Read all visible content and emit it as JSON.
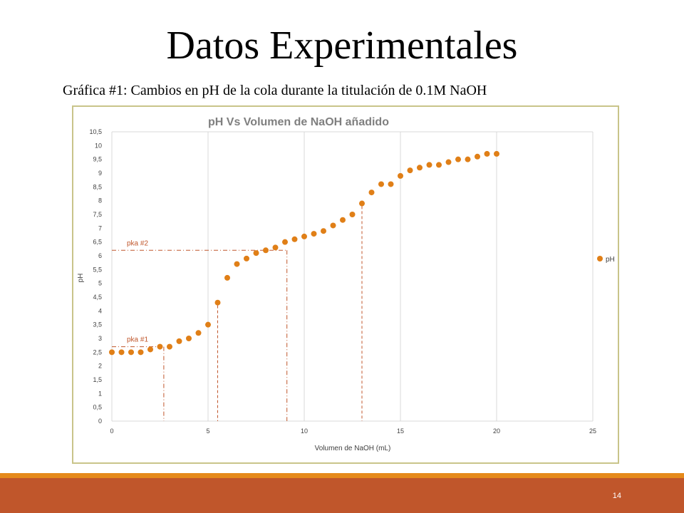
{
  "slide": {
    "title": "Datos Experimentales",
    "subtitle": "Gráfica #1: Cambios en pH de la cola durante la titulación de 0.1M NaOH",
    "page_number": "14"
  },
  "colors": {
    "marker": "#e07f17",
    "annotation": "#c0562b",
    "frame": "#c9c48a",
    "footer": "#c0562b",
    "footer_accent": "#e58a1b",
    "grid": "#d9d9d9",
    "title_text": "#7f7f7f"
  },
  "chart_data": {
    "type": "scatter",
    "title": "pH Vs Volumen de NaOH añadido",
    "xlabel": "Volumen de NaOH (mL)",
    "ylabel": "pH",
    "xlim": [
      0,
      25
    ],
    "ylim": [
      0,
      10.5
    ],
    "x_ticks": [
      "0",
      "5",
      "10",
      "15",
      "20",
      "25"
    ],
    "y_ticks": [
      "0",
      "0,5",
      "1",
      "1,5",
      "2",
      "2,5",
      "3",
      "3,5",
      "4",
      "4,5",
      "5",
      "5,5",
      "6",
      "6,5",
      "7",
      "7,5",
      "8",
      "8,5",
      "9",
      "9,5",
      "10",
      "10,5"
    ],
    "grid": "vertical",
    "legend": "right",
    "series": [
      {
        "name": "pH",
        "x": [
          0,
          0.5,
          1,
          1.5,
          2,
          2.5,
          3,
          3.5,
          4,
          4.5,
          5,
          5.5,
          6,
          6.5,
          7,
          7.5,
          8,
          8.5,
          9,
          9.5,
          10,
          10.5,
          11,
          11.5,
          12,
          12.5,
          13,
          13.5,
          14,
          14.5,
          15,
          15.5,
          16,
          16.5,
          17,
          17.5,
          18,
          18.5,
          19,
          19.5,
          20
        ],
        "y": [
          2.5,
          2.5,
          2.5,
          2.5,
          2.6,
          2.7,
          2.7,
          2.9,
          3.0,
          3.2,
          3.5,
          4.3,
          5.2,
          5.7,
          5.9,
          6.1,
          6.2,
          6.3,
          6.5,
          6.6,
          6.7,
          6.8,
          6.9,
          7.1,
          7.3,
          7.5,
          7.9,
          8.3,
          8.6,
          8.6,
          8.9,
          9.1,
          9.2,
          9.3,
          9.3,
          9.4,
          9.5,
          9.5,
          9.6,
          9.7,
          9.7
        ]
      }
    ],
    "annotations": [
      {
        "label": "pka #1",
        "ph": 2.7,
        "x_end": 2.7,
        "x_equivalence": 5.5
      },
      {
        "label": "pka #2",
        "ph": 6.2,
        "x_end": 9.1,
        "x_equivalence": 13.0
      }
    ]
  }
}
